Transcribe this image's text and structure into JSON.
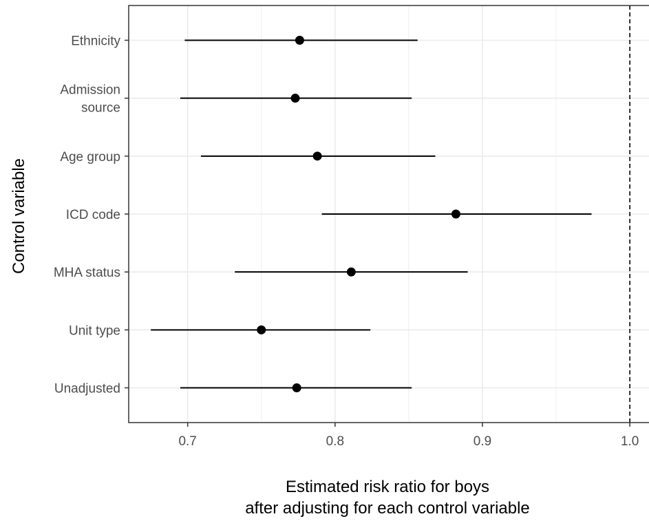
{
  "chart_data": {
    "type": "forest",
    "xlabel": "Estimated risk ratio for boys\nafter adjusting for each control variable",
    "ylabel": "Control variable",
    "xlim": [
      0.66,
      1.013
    ],
    "xticks": [
      "0.7",
      "0.8",
      "0.9",
      "1.0"
    ],
    "xtick_values": [
      0.7,
      0.8,
      0.9,
      1.0
    ],
    "reference_line": 1.0,
    "grid": true,
    "categories": [
      "Ethnicity",
      "Admission\nsource",
      "Age group",
      "ICD code",
      "MHA status",
      "Unit type",
      "Unadjusted"
    ],
    "estimates": [
      0.776,
      0.773,
      0.788,
      0.882,
      0.811,
      0.75,
      0.774
    ],
    "lower": [
      0.698,
      0.695,
      0.709,
      0.791,
      0.732,
      0.675,
      0.695
    ],
    "upper": [
      0.856,
      0.852,
      0.868,
      0.974,
      0.89,
      0.824,
      0.852
    ],
    "colors": {
      "point": "#000000",
      "grid": "#ebebeb",
      "panel_border": "#333333",
      "tick_text": "#4d4d4d"
    }
  }
}
